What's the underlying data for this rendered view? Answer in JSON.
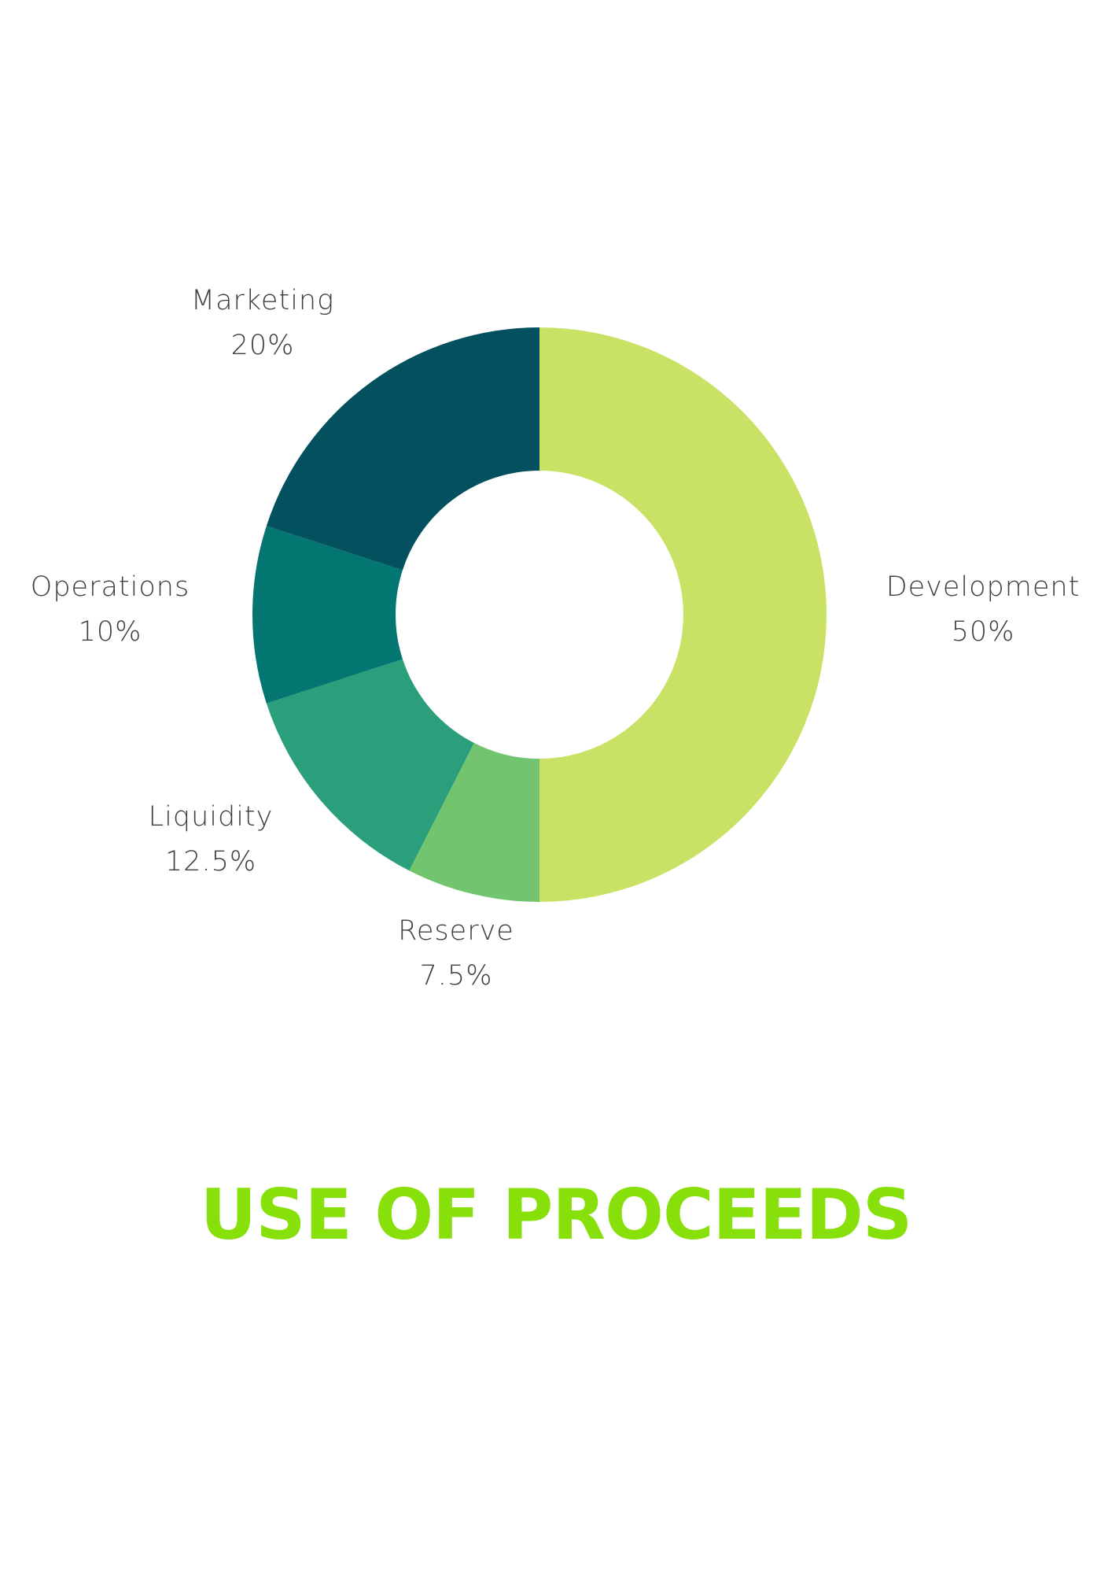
{
  "chart_data": {
    "type": "pie",
    "style": "donut",
    "title": "USE OF PROCEEDS",
    "slices": [
      {
        "label": "Development",
        "value": 50,
        "value_label": "50%",
        "color": "#c9e265"
      },
      {
        "label": "Reserve",
        "value": 7.5,
        "value_label": "7.5%",
        "color": "#72c46e"
      },
      {
        "label": "Liquidity",
        "value": 12.5,
        "value_label": "12.5%",
        "color": "#2b9e7b"
      },
      {
        "label": "Operations",
        "value": 10,
        "value_label": "10%",
        "color": "#047671"
      },
      {
        "label": "Marketing",
        "value": 20,
        "value_label": "20%",
        "color": "#03505e"
      }
    ],
    "start_angle_deg": 0,
    "direction": "clockwise",
    "legend": "none"
  },
  "colors": {
    "title": "#88e00b",
    "label_text": "#3c4046",
    "background": "#ffffff"
  }
}
